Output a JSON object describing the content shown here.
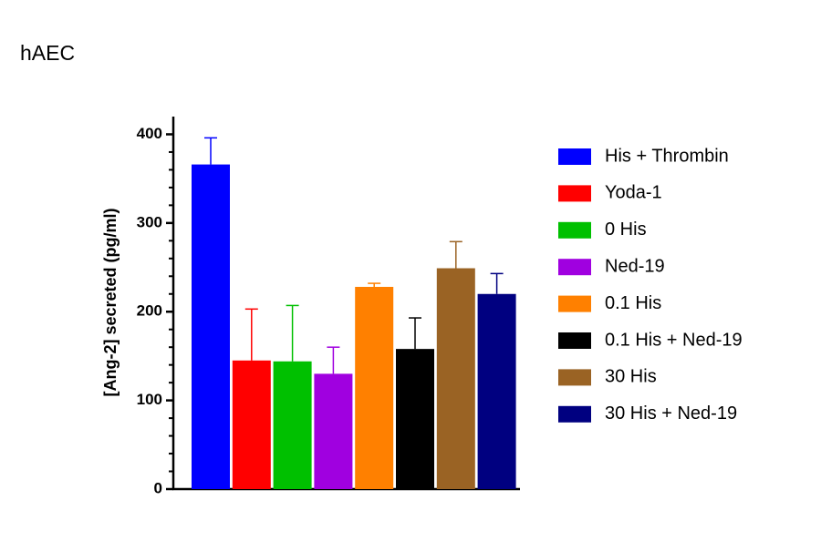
{
  "chart_data": {
    "type": "bar",
    "title": "hAEC",
    "y_label": "[Ang-2] secreted (pg/ml)",
    "ylim": [
      0,
      420
    ],
    "yticks": [
      0,
      100,
      200,
      300,
      400
    ],
    "yminorticks": [
      20,
      40,
      60,
      80,
      120,
      140,
      160,
      180,
      220,
      240,
      260,
      280,
      320,
      340,
      360,
      380
    ],
    "grid": false,
    "legend": "right",
    "series": [
      {
        "name": "His + Thrombin",
        "color": "#0000ff",
        "values": [
          366
        ],
        "errors": [
          30
        ]
      },
      {
        "name": "Yoda-1",
        "color": "#ff0000",
        "values": [
          145
        ],
        "errors": [
          58
        ]
      },
      {
        "name": "0 His",
        "color": "#00c000",
        "values": [
          144
        ],
        "errors": [
          63
        ]
      },
      {
        "name": "Ned-19",
        "color": "#a000e0",
        "values": [
          130
        ],
        "errors": [
          30
        ]
      },
      {
        "name": "0.1 His",
        "color": "#ff8000",
        "values": [
          228
        ],
        "errors": [
          4
        ]
      },
      {
        "name": "0.1 His + Ned-19",
        "color": "#000000",
        "values": [
          158
        ],
        "errors": [
          35
        ]
      },
      {
        "name": "30 His",
        "color": "#9a6324",
        "values": [
          249
        ],
        "errors": [
          30
        ]
      },
      {
        "name": "30 His + Ned-19",
        "color": "#000080",
        "values": [
          220
        ],
        "errors": [
          23
        ]
      }
    ]
  }
}
